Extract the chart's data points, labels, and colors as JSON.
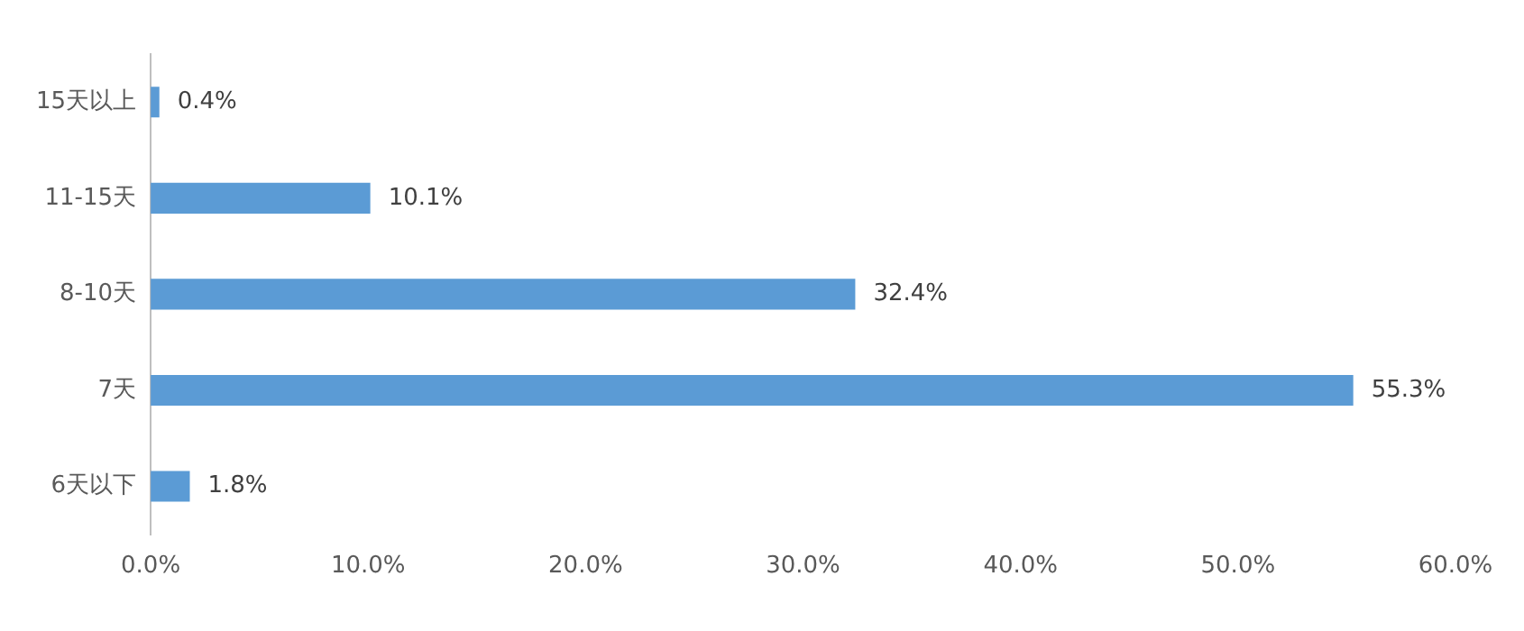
{
  "chart_data": {
    "type": "bar",
    "orientation": "horizontal",
    "categories": [
      "15天以上",
      "11-15天",
      "8-10天",
      "7天",
      "6天以下"
    ],
    "values": [
      0.4,
      10.1,
      32.4,
      55.3,
      1.8
    ],
    "color": "#5b9bd5",
    "value_labels": [
      "0.4%",
      "10.1%",
      "32.4%",
      "55.3%",
      "1.8%"
    ],
    "xlim": [
      0,
      60
    ],
    "xticks": [
      {
        "value": 0,
        "label": "0.0%"
      },
      {
        "value": 10,
        "label": "10.0%"
      },
      {
        "value": 20,
        "label": "20.0%"
      },
      {
        "value": 30,
        "label": "30.0%"
      },
      {
        "value": 40,
        "label": "40.0%"
      },
      {
        "value": 50,
        "label": "50.0%"
      },
      {
        "value": 60,
        "label": "60.0%"
      }
    ],
    "grid": false,
    "legend": false
  }
}
